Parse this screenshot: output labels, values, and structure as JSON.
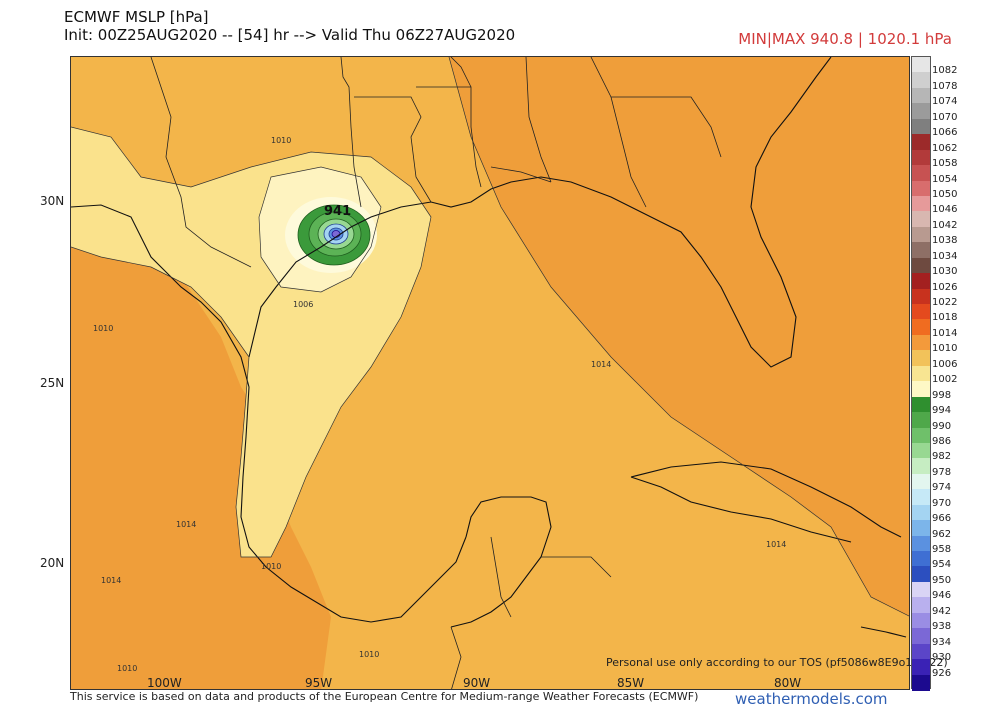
{
  "header": {
    "title_line1": "ECMWF MSLP [hPa]",
    "title_line2": "Init: 00Z25AUG2020 -- [54] hr --> Valid Thu 06Z27AUG2020",
    "minmax": "MIN|MAX 940.8 | 1020.1 hPa"
  },
  "map": {
    "latitudes": [
      "30N",
      "25N",
      "20N"
    ],
    "longitudes": [
      "100W",
      "95W",
      "90W",
      "85W",
      "80W"
    ],
    "contour_labels": {
      "c1010_nw": "1010",
      "c1006": "1006",
      "c1010_w": "1010",
      "c1014_e": "1014",
      "c1014_sw": "1014",
      "c1014_s": "1014",
      "c1014_cuba": "1014",
      "c1010_s": "1010",
      "c1010_yuc": "1010",
      "c1014_far_sw": "1014",
      "c1010_bottom": "1010",
      "center": "941"
    },
    "tos_note": "Personal use only according to our TOS (pf5086w8E9o19l122)"
  },
  "colorbar": {
    "labels": [
      "1082",
      "1078",
      "1074",
      "1070",
      "1066",
      "1062",
      "1058",
      "1054",
      "1050",
      "1046",
      "1042",
      "1038",
      "1034",
      "1030",
      "1026",
      "1022",
      "1018",
      "1014",
      "1010",
      "1006",
      "1002",
      "998",
      "994",
      "990",
      "986",
      "982",
      "978",
      "974",
      "970",
      "966",
      "962",
      "958",
      "954",
      "950",
      "946",
      "942",
      "938",
      "934",
      "930",
      "926"
    ],
    "colors": [
      "#e6e6e6",
      "#cfcfcf",
      "#b6b6b6",
      "#9b9b9b",
      "#7f7f7f",
      "#9c2a2a",
      "#b23a3a",
      "#c75252",
      "#d86d6d",
      "#e69a9a",
      "#d8b7b0",
      "#b89a90",
      "#8e6f66",
      "#6e4a40",
      "#a32020",
      "#c8321e",
      "#e44a1e",
      "#f06c20",
      "#f39a3b",
      "#f2c25a",
      "#f8e592",
      "#fef8c6",
      "#2f8f2f",
      "#4fa84a",
      "#6fc06a",
      "#98d892",
      "#c6edc2",
      "#e3f6ef",
      "#c6e9f7",
      "#a4d4f2",
      "#7cb5ea",
      "#5b91e0",
      "#3f6fd3",
      "#2c4fbf",
      "#d9d4f5",
      "#b9b0ee",
      "#9a8de4",
      "#7b68d6",
      "#5b45c8",
      "#3a22b5",
      "#1c0a8f"
    ],
    "unit": "hPa"
  },
  "footer": {
    "credit": "This service is based on data and products of the European Centre for Medium-range Weather Forecasts (ECMWF)",
    "brand": "weathermodels.com"
  }
}
